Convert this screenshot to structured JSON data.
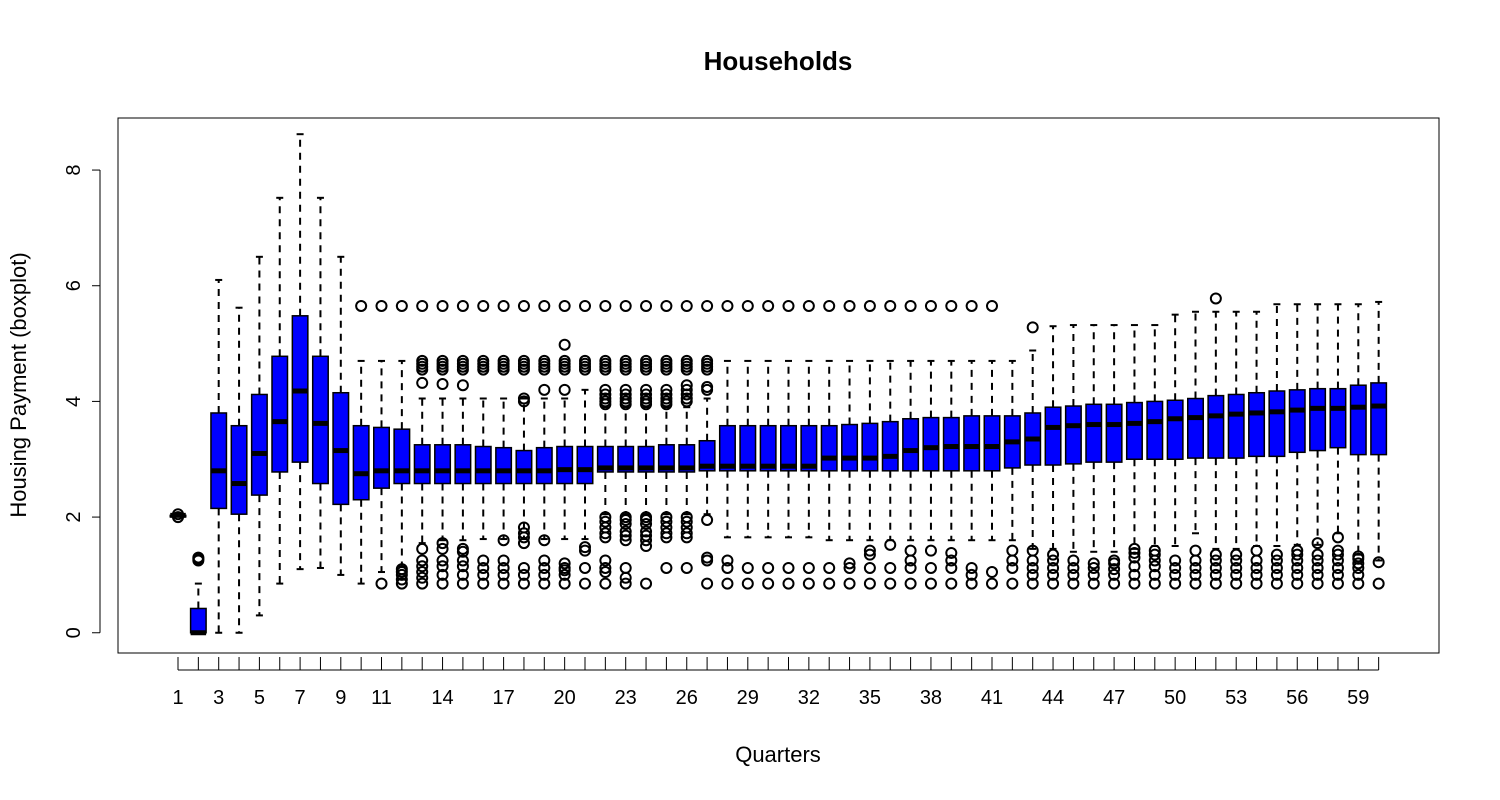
{
  "chart_data": {
    "type": "boxplot",
    "title": "Households",
    "xlabel": "Quarters",
    "ylabel": "Housing Payment (boxplot)",
    "ylim": [
      -0.35,
      8.9
    ],
    "yticks": [
      0,
      2,
      4,
      6,
      8
    ],
    "xtick_labels": [
      "1",
      "3",
      "5",
      "7",
      "9",
      "11",
      "14",
      "17",
      "20",
      "23",
      "26",
      "29",
      "32",
      "35",
      "38",
      "41",
      "44",
      "47",
      "50",
      "53",
      "56",
      "59"
    ],
    "box_color": "#0000ff",
    "boxes": [
      {
        "q": 1,
        "whislo": 2.03,
        "q1": 2.03,
        "med": 2.03,
        "q3": 2.03,
        "whishi": 2.03,
        "outliers": [
          2.0,
          2.05
        ]
      },
      {
        "q": 2,
        "whislo": 0.0,
        "q1": 0.0,
        "med": 0.0,
        "q3": 0.42,
        "whishi": 0.85,
        "outliers": [
          1.25,
          1.28,
          1.3
        ]
      },
      {
        "q": 3,
        "whislo": 0.0,
        "q1": 2.15,
        "med": 2.8,
        "q3": 3.8,
        "whishi": 6.1,
        "outliers": []
      },
      {
        "q": 4,
        "whislo": 0.0,
        "q1": 2.05,
        "med": 2.58,
        "q3": 3.58,
        "whishi": 5.62,
        "outliers": []
      },
      {
        "q": 5,
        "whislo": 0.3,
        "q1": 2.38,
        "med": 3.1,
        "q3": 4.12,
        "whishi": 6.5,
        "outliers": []
      },
      {
        "q": 6,
        "whislo": 0.85,
        "q1": 2.78,
        "med": 3.65,
        "q3": 4.78,
        "whishi": 7.52,
        "outliers": []
      },
      {
        "q": 7,
        "whislo": 1.1,
        "q1": 2.95,
        "med": 4.18,
        "q3": 5.48,
        "whishi": 8.62,
        "outliers": []
      },
      {
        "q": 8,
        "whislo": 1.12,
        "q1": 2.58,
        "med": 3.62,
        "q3": 4.78,
        "whishi": 7.52,
        "outliers": []
      },
      {
        "q": 9,
        "whislo": 1.0,
        "q1": 2.22,
        "med": 3.15,
        "q3": 4.15,
        "whishi": 6.5,
        "outliers": []
      },
      {
        "q": 10,
        "whislo": 0.85,
        "q1": 2.3,
        "med": 2.75,
        "q3": 3.58,
        "whishi": 4.7,
        "outliers": [
          5.65
        ]
      },
      {
        "q": 11,
        "whislo": 1.05,
        "q1": 2.5,
        "med": 2.8,
        "q3": 3.55,
        "whishi": 4.7,
        "outliers": [
          0.85,
          5.65
        ]
      },
      {
        "q": 12,
        "whislo": 1.15,
        "q1": 2.58,
        "med": 2.8,
        "q3": 3.52,
        "whishi": 4.7,
        "outliers": [
          0.85,
          0.92,
          1.0,
          1.05,
          1.1,
          5.65
        ]
      },
      {
        "q": 13,
        "whislo": 1.55,
        "q1": 2.58,
        "med": 2.8,
        "q3": 3.25,
        "whishi": 4.05,
        "outliers": [
          0.85,
          0.95,
          1.05,
          1.15,
          1.25,
          1.45,
          4.32,
          4.55,
          4.6,
          4.65,
          4.7,
          5.65
        ]
      },
      {
        "q": 14,
        "whislo": 1.6,
        "q1": 2.58,
        "med": 2.8,
        "q3": 3.25,
        "whishi": 4.05,
        "outliers": [
          0.85,
          1.0,
          1.15,
          1.25,
          1.45,
          1.55,
          4.3,
          4.55,
          4.6,
          4.65,
          4.7,
          5.65
        ]
      },
      {
        "q": 15,
        "whislo": 1.6,
        "q1": 2.58,
        "med": 2.8,
        "q3": 3.25,
        "whishi": 4.05,
        "outliers": [
          0.85,
          1.0,
          1.15,
          1.25,
          1.4,
          1.45,
          4.28,
          4.55,
          4.6,
          4.65,
          4.7,
          5.65
        ]
      },
      {
        "q": 16,
        "whislo": 1.62,
        "q1": 2.58,
        "med": 2.8,
        "q3": 3.22,
        "whishi": 4.05,
        "outliers": [
          0.85,
          1.0,
          1.12,
          1.25,
          4.55,
          4.6,
          4.65,
          4.7,
          5.65
        ]
      },
      {
        "q": 17,
        "whislo": 1.62,
        "q1": 2.58,
        "med": 2.8,
        "q3": 3.2,
        "whishi": 4.05,
        "outliers": [
          0.85,
          1.0,
          1.12,
          1.25,
          1.6,
          4.55,
          4.6,
          4.65,
          4.7,
          5.65
        ]
      },
      {
        "q": 18,
        "whislo": 1.62,
        "q1": 2.58,
        "med": 2.8,
        "q3": 3.15,
        "whishi": 4.05,
        "outliers": [
          0.85,
          1.0,
          1.12,
          1.55,
          1.65,
          1.72,
          1.82,
          4.0,
          4.05,
          4.55,
          4.6,
          4.65,
          4.7,
          5.65
        ]
      },
      {
        "q": 19,
        "whislo": 1.62,
        "q1": 2.58,
        "med": 2.8,
        "q3": 3.2,
        "whishi": 4.05,
        "outliers": [
          0.85,
          1.0,
          1.12,
          1.25,
          1.6,
          4.2,
          4.55,
          4.6,
          4.65,
          4.7,
          5.65
        ]
      },
      {
        "q": 20,
        "whislo": 1.62,
        "q1": 2.58,
        "med": 2.82,
        "q3": 3.22,
        "whishi": 4.05,
        "outliers": [
          0.85,
          1.0,
          1.08,
          1.12,
          1.2,
          4.2,
          4.55,
          4.6,
          4.65,
          4.7,
          4.98,
          5.65
        ]
      },
      {
        "q": 21,
        "whislo": 1.62,
        "q1": 2.58,
        "med": 2.82,
        "q3": 3.22,
        "whishi": 4.2,
        "outliers": [
          0.85,
          1.12,
          1.42,
          1.48,
          4.55,
          4.6,
          4.65,
          4.7,
          5.65
        ]
      },
      {
        "q": 22,
        "whislo": 2.05,
        "q1": 2.78,
        "med": 2.85,
        "q3": 3.22,
        "whishi": 3.9,
        "outliers": [
          0.85,
          1.05,
          1.12,
          1.25,
          1.65,
          1.72,
          1.82,
          1.92,
          2.0,
          3.95,
          4.0,
          4.05,
          4.12,
          4.2,
          4.55,
          4.6,
          4.65,
          4.7,
          5.65
        ]
      },
      {
        "q": 23,
        "whislo": 2.05,
        "q1": 2.78,
        "med": 2.85,
        "q3": 3.22,
        "whishi": 3.9,
        "outliers": [
          0.85,
          0.95,
          1.12,
          1.6,
          1.68,
          1.75,
          1.88,
          1.95,
          2.0,
          3.95,
          4.0,
          4.05,
          4.12,
          4.2,
          4.55,
          4.6,
          4.65,
          4.7,
          5.65
        ]
      },
      {
        "q": 24,
        "whislo": 2.05,
        "q1": 2.78,
        "med": 2.85,
        "q3": 3.22,
        "whishi": 3.9,
        "outliers": [
          0.85,
          1.5,
          1.6,
          1.68,
          1.75,
          1.88,
          1.95,
          2.0,
          3.95,
          4.0,
          4.05,
          4.12,
          4.2,
          4.55,
          4.6,
          4.65,
          4.7,
          5.65
        ]
      },
      {
        "q": 25,
        "whislo": 2.05,
        "q1": 2.78,
        "med": 2.85,
        "q3": 3.25,
        "whishi": 3.9,
        "outliers": [
          1.12,
          1.65,
          1.72,
          1.82,
          1.92,
          2.0,
          3.95,
          4.0,
          4.05,
          4.12,
          4.2,
          4.55,
          4.6,
          4.65,
          4.7,
          5.65
        ]
      },
      {
        "q": 26,
        "whislo": 2.05,
        "q1": 2.78,
        "med": 2.85,
        "q3": 3.25,
        "whishi": 3.9,
        "outliers": [
          1.12,
          1.65,
          1.72,
          1.82,
          1.92,
          2.0,
          4.0,
          4.05,
          4.12,
          4.2,
          4.28,
          4.55,
          4.6,
          4.65,
          4.7,
          5.65
        ]
      },
      {
        "q": 27,
        "whislo": 2.05,
        "q1": 2.8,
        "med": 2.88,
        "q3": 3.32,
        "whishi": 4.05,
        "outliers": [
          0.85,
          1.25,
          1.3,
          1.95,
          4.2,
          4.25,
          4.55,
          4.6,
          4.65,
          4.7,
          5.65
        ]
      },
      {
        "q": 28,
        "whislo": 1.65,
        "q1": 2.8,
        "med": 2.88,
        "q3": 3.58,
        "whishi": 4.7,
        "outliers": [
          0.85,
          1.12,
          1.25,
          5.65
        ]
      },
      {
        "q": 29,
        "whislo": 1.65,
        "q1": 2.8,
        "med": 2.88,
        "q3": 3.58,
        "whishi": 4.7,
        "outliers": [
          0.85,
          1.12,
          5.65
        ]
      },
      {
        "q": 30,
        "whislo": 1.65,
        "q1": 2.8,
        "med": 2.88,
        "q3": 3.58,
        "whishi": 4.7,
        "outliers": [
          0.85,
          1.12,
          5.65
        ]
      },
      {
        "q": 31,
        "whislo": 1.65,
        "q1": 2.8,
        "med": 2.88,
        "q3": 3.58,
        "whishi": 4.7,
        "outliers": [
          0.85,
          1.12,
          5.65
        ]
      },
      {
        "q": 32,
        "whislo": 1.65,
        "q1": 2.8,
        "med": 2.88,
        "q3": 3.58,
        "whishi": 4.7,
        "outliers": [
          0.85,
          1.12,
          5.65
        ]
      },
      {
        "q": 33,
        "whislo": 1.6,
        "q1": 2.8,
        "med": 3.02,
        "q3": 3.58,
        "whishi": 4.7,
        "outliers": [
          0.85,
          1.12,
          5.65
        ]
      },
      {
        "q": 34,
        "whislo": 1.6,
        "q1": 2.8,
        "med": 3.02,
        "q3": 3.6,
        "whishi": 4.7,
        "outliers": [
          0.85,
          1.12,
          1.2,
          5.65
        ]
      },
      {
        "q": 35,
        "whislo": 1.6,
        "q1": 2.8,
        "med": 3.02,
        "q3": 3.62,
        "whishi": 4.7,
        "outliers": [
          0.85,
          1.12,
          1.35,
          1.42,
          5.65
        ]
      },
      {
        "q": 36,
        "whislo": 1.6,
        "q1": 2.8,
        "med": 3.05,
        "q3": 3.65,
        "whishi": 4.7,
        "outliers": [
          0.85,
          1.12,
          1.52,
          5.65
        ]
      },
      {
        "q": 37,
        "whislo": 1.6,
        "q1": 2.8,
        "med": 3.15,
        "q3": 3.7,
        "whishi": 4.7,
        "outliers": [
          0.85,
          1.12,
          1.25,
          1.42,
          5.65
        ]
      },
      {
        "q": 38,
        "whislo": 1.6,
        "q1": 2.8,
        "med": 3.2,
        "q3": 3.72,
        "whishi": 4.7,
        "outliers": [
          0.85,
          1.12,
          1.42,
          5.65
        ]
      },
      {
        "q": 39,
        "whislo": 1.6,
        "q1": 2.8,
        "med": 3.22,
        "q3": 3.72,
        "whishi": 4.7,
        "outliers": [
          0.85,
          1.12,
          1.25,
          1.38,
          5.65
        ]
      },
      {
        "q": 40,
        "whislo": 1.6,
        "q1": 2.8,
        "med": 3.22,
        "q3": 3.75,
        "whishi": 4.7,
        "outliers": [
          0.85,
          1.0,
          1.12,
          5.65
        ]
      },
      {
        "q": 41,
        "whislo": 1.6,
        "q1": 2.8,
        "med": 3.22,
        "q3": 3.75,
        "whishi": 4.7,
        "outliers": [
          0.85,
          1.05,
          5.65
        ]
      },
      {
        "q": 42,
        "whislo": 1.6,
        "q1": 2.85,
        "med": 3.3,
        "q3": 3.75,
        "whishi": 4.7,
        "outliers": [
          0.85,
          1.12,
          1.25,
          1.42
        ]
      },
      {
        "q": 43,
        "whislo": 1.45,
        "q1": 2.9,
        "med": 3.35,
        "q3": 3.8,
        "whishi": 4.88,
        "outliers": [
          0.85,
          1.0,
          1.12,
          1.25,
          1.42,
          5.28
        ]
      },
      {
        "q": 44,
        "whislo": 1.45,
        "q1": 2.9,
        "med": 3.55,
        "q3": 3.9,
        "whishi": 5.3,
        "outliers": [
          0.85,
          1.0,
          1.12,
          1.25,
          1.35
        ]
      },
      {
        "q": 45,
        "whislo": 1.4,
        "q1": 2.92,
        "med": 3.58,
        "q3": 3.92,
        "whishi": 5.32,
        "outliers": [
          0.85,
          1.0,
          1.12,
          1.25
        ]
      },
      {
        "q": 46,
        "whislo": 1.4,
        "q1": 2.95,
        "med": 3.6,
        "q3": 3.95,
        "whishi": 5.32,
        "outliers": [
          0.85,
          1.0,
          1.12,
          1.2
        ]
      },
      {
        "q": 47,
        "whislo": 1.4,
        "q1": 2.95,
        "med": 3.6,
        "q3": 3.95,
        "whishi": 5.32,
        "outliers": [
          0.85,
          1.0,
          1.1,
          1.2,
          1.25
        ]
      },
      {
        "q": 48,
        "whislo": 1.45,
        "q1": 3.0,
        "med": 3.62,
        "q3": 3.98,
        "whishi": 5.32,
        "outliers": [
          0.85,
          1.0,
          1.15,
          1.3,
          1.38,
          1.45
        ]
      },
      {
        "q": 49,
        "whislo": 1.5,
        "q1": 3.0,
        "med": 3.65,
        "q3": 4.0,
        "whishi": 5.32,
        "outliers": [
          0.85,
          1.0,
          1.15,
          1.25,
          1.35,
          1.42
        ]
      },
      {
        "q": 50,
        "whislo": 1.5,
        "q1": 3.0,
        "med": 3.7,
        "q3": 4.02,
        "whishi": 5.5,
        "outliers": [
          0.85,
          1.0,
          1.12,
          1.25
        ]
      },
      {
        "q": 51,
        "whislo": 1.72,
        "q1": 3.02,
        "med": 3.72,
        "q3": 4.05,
        "whishi": 5.55,
        "outliers": [
          0.85,
          1.0,
          1.12,
          1.25,
          1.42
        ]
      },
      {
        "q": 52,
        "whislo": 1.45,
        "q1": 3.02,
        "med": 3.75,
        "q3": 4.1,
        "whishi": 5.55,
        "outliers": [
          0.85,
          1.0,
          1.12,
          1.25,
          1.35,
          5.78
        ]
      },
      {
        "q": 53,
        "whislo": 1.45,
        "q1": 3.02,
        "med": 3.78,
        "q3": 4.12,
        "whishi": 5.55,
        "outliers": [
          0.85,
          1.0,
          1.12,
          1.25,
          1.35
        ]
      },
      {
        "q": 54,
        "whislo": 1.5,
        "q1": 3.05,
        "med": 3.8,
        "q3": 4.15,
        "whishi": 5.55,
        "outliers": [
          0.85,
          1.0,
          1.12,
          1.25,
          1.42
        ]
      },
      {
        "q": 55,
        "whislo": 1.5,
        "q1": 3.05,
        "med": 3.82,
        "q3": 4.18,
        "whishi": 5.68,
        "outliers": [
          0.85,
          1.0,
          1.12,
          1.25,
          1.35
        ]
      },
      {
        "q": 56,
        "whislo": 1.52,
        "q1": 3.12,
        "med": 3.85,
        "q3": 4.2,
        "whishi": 5.68,
        "outliers": [
          0.85,
          1.0,
          1.12,
          1.25,
          1.35,
          1.42
        ]
      },
      {
        "q": 57,
        "whislo": 1.52,
        "q1": 3.15,
        "med": 3.88,
        "q3": 4.22,
        "whishi": 5.68,
        "outliers": [
          0.85,
          1.0,
          1.12,
          1.25,
          1.35,
          1.55
        ]
      },
      {
        "q": 58,
        "whislo": 1.72,
        "q1": 3.2,
        "med": 3.88,
        "q3": 4.22,
        "whishi": 5.68,
        "outliers": [
          0.85,
          1.0,
          1.12,
          1.25,
          1.35,
          1.42,
          1.65
        ]
      },
      {
        "q": 59,
        "whislo": 1.35,
        "q1": 3.08,
        "med": 3.9,
        "q3": 4.28,
        "whishi": 5.68,
        "outliers": [
          0.85,
          1.0,
          1.12,
          1.2,
          1.28,
          1.32
        ]
      },
      {
        "q": 60,
        "whislo": 1.25,
        "q1": 3.08,
        "med": 3.92,
        "q3": 4.32,
        "whishi": 5.72,
        "outliers": [
          0.85,
          1.22
        ]
      }
    ]
  }
}
